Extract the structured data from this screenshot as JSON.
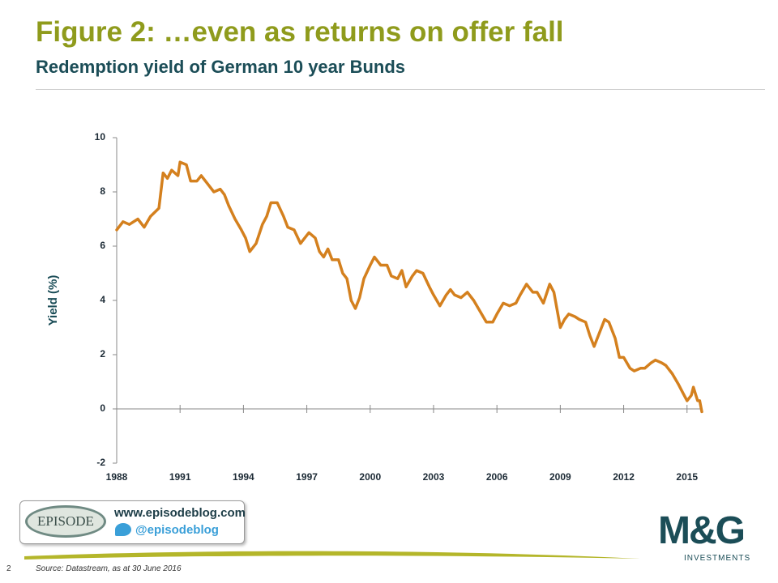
{
  "chart_data": {
    "type": "line",
    "title": "Figure 2: …even as returns on offer fall",
    "subtitle": "Redemption yield of German 10 year Bunds",
    "y_label": "Yield (%)",
    "color": "#d4801e",
    "x": [
      1988.0,
      1988.3,
      1988.6,
      1989.0,
      1989.3,
      1989.6,
      1990.0,
      1990.2,
      1990.4,
      1990.6,
      1990.9,
      1991.0,
      1991.3,
      1991.5,
      1991.8,
      1992.0,
      1992.3,
      1992.6,
      1992.9,
      1993.1,
      1993.3,
      1993.6,
      1993.9,
      1994.1,
      1994.3,
      1994.6,
      1994.9,
      1995.1,
      1995.3,
      1995.6,
      1995.9,
      1996.1,
      1996.4,
      1996.7,
      1996.9,
      1997.1,
      1997.4,
      1997.6,
      1997.8,
      1998.0,
      1998.2,
      1998.5,
      1998.7,
      1998.9,
      1999.1,
      1999.3,
      1999.5,
      1999.7,
      2000.0,
      2000.2,
      2000.5,
      2000.8,
      2001.0,
      2001.3,
      2001.5,
      2001.7,
      2002.0,
      2002.2,
      2002.5,
      2002.8,
      2003.0,
      2003.3,
      2003.6,
      2003.8,
      2004.0,
      2004.3,
      2004.6,
      2004.9,
      2005.2,
      2005.5,
      2005.8,
      2006.0,
      2006.3,
      2006.6,
      2006.9,
      2007.1,
      2007.4,
      2007.7,
      2007.9,
      2008.2,
      2008.5,
      2008.7,
      2009.0,
      2009.2,
      2009.4,
      2009.7,
      2009.9,
      2010.2,
      2010.4,
      2010.6,
      2010.9,
      2011.1,
      2011.3,
      2011.6,
      2011.8,
      2012.0,
      2012.3,
      2012.5,
      2012.8,
      2013.0,
      2013.3,
      2013.5,
      2013.8,
      2014.0,
      2014.3,
      2014.6,
      2014.8,
      2015.0,
      2015.2,
      2015.3,
      2015.5,
      2015.6,
      2015.7
    ],
    "values": [
      6.6,
      6.9,
      6.8,
      7.0,
      6.7,
      7.1,
      7.4,
      8.7,
      8.5,
      8.8,
      8.6,
      9.1,
      9.0,
      8.4,
      8.4,
      8.6,
      8.3,
      8.0,
      8.1,
      7.9,
      7.5,
      7.0,
      6.6,
      6.3,
      5.8,
      6.1,
      6.8,
      7.1,
      7.6,
      7.6,
      7.1,
      6.7,
      6.6,
      6.1,
      6.3,
      6.5,
      6.3,
      5.8,
      5.6,
      5.9,
      5.5,
      5.5,
      5.0,
      4.8,
      4.0,
      3.7,
      4.1,
      4.8,
      5.3,
      5.6,
      5.3,
      5.3,
      4.9,
      4.8,
      5.1,
      4.5,
      4.9,
      5.1,
      5.0,
      4.5,
      4.2,
      3.8,
      4.2,
      4.4,
      4.2,
      4.1,
      4.3,
      4.0,
      3.6,
      3.2,
      3.2,
      3.5,
      3.9,
      3.8,
      3.9,
      4.2,
      4.6,
      4.3,
      4.3,
      3.9,
      4.6,
      4.3,
      3.0,
      3.3,
      3.5,
      3.4,
      3.3,
      3.2,
      2.7,
      2.3,
      2.9,
      3.3,
      3.2,
      2.6,
      1.9,
      1.9,
      1.5,
      1.4,
      1.5,
      1.5,
      1.7,
      1.8,
      1.7,
      1.6,
      1.3,
      0.9,
      0.6,
      0.3,
      0.5,
      0.8,
      0.3,
      0.3,
      -0.1
    ],
    "xlim": [
      1988,
      2015.7
    ],
    "xticks": [
      1988,
      1991,
      1994,
      1997,
      2000,
      2003,
      2006,
      2009,
      2012,
      2015
    ],
    "ylim": [
      -2,
      10
    ],
    "yticks": [
      -2,
      0,
      2,
      4,
      6,
      8,
      10
    ]
  },
  "badge": {
    "logo": "EPISODE",
    "website": "www.episodeblog.com",
    "twitter": "@episodeblog"
  },
  "brand": {
    "logo": "M&G",
    "tagline": "INVESTMENTS"
  },
  "footer": {
    "page": "2",
    "source": "Source: Datastream, as at 30 June 2016"
  }
}
